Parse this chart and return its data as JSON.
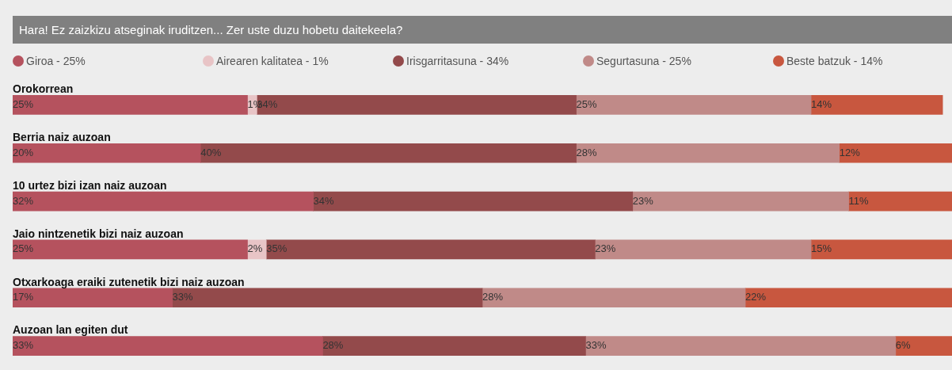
{
  "chart_data": {
    "type": "bar",
    "orientation": "horizontal",
    "stacked": true,
    "title": "Hara! Ez zaizkizu atseginak iruditzen... Zer uste duzu hobetu daitekeela?",
    "categories": [
      "Orokorrean",
      "Berria naiz auzoan",
      "10 urtez bizi izan naiz auzoan",
      "Jaio nintzenetik bizi naiz auzoan",
      "Otxarkoaga eraiki zutenetik bizi naiz auzoan",
      "Auzoan lan egiten dut"
    ],
    "series": [
      {
        "name": "Giroa - 25%",
        "color": "#b5525e",
        "values": [
          25,
          20,
          32,
          25,
          17,
          33
        ],
        "value_labels": [
          "25%",
          "20%",
          "32%",
          "25%",
          "17%",
          "33%"
        ]
      },
      {
        "name": "Airearen kalitatea - 1%",
        "color": "#e8c4c6",
        "values": [
          1,
          null,
          null,
          2,
          null,
          null
        ],
        "value_labels": [
          "1%",
          null,
          null,
          "2%",
          null,
          null
        ]
      },
      {
        "name": "Irisgarritasuna - 34%",
        "color": "#934a4b",
        "values": [
          34,
          40,
          34,
          35,
          33,
          28
        ],
        "value_labels": [
          "34%",
          "40%",
          "34%",
          "35%",
          "33%",
          "28%"
        ]
      },
      {
        "name": "Segurtasuna - 25%",
        "color": "#c08a88",
        "values": [
          25,
          28,
          23,
          23,
          28,
          33
        ],
        "value_labels": [
          "25%",
          "28%",
          "23%",
          "23%",
          "28%",
          "33%"
        ]
      },
      {
        "name": "Beste batzuk - 14%",
        "color": "#c8573f",
        "values": [
          14,
          12,
          11,
          15,
          22,
          6
        ],
        "value_labels": [
          "14%",
          "12%",
          "11%",
          "15%",
          "22%",
          "6%"
        ]
      }
    ],
    "tick_labels": false,
    "legend": "top"
  }
}
